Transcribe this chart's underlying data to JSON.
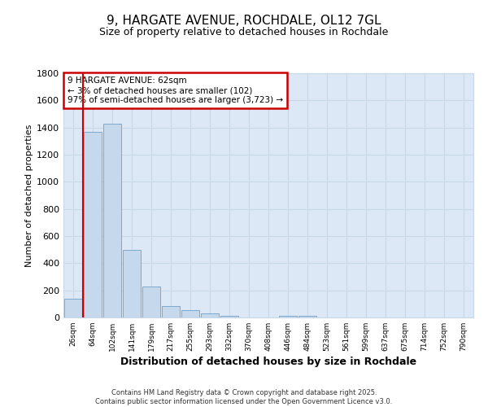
{
  "title1": "9, HARGATE AVENUE, ROCHDALE, OL12 7GL",
  "title2": "Size of property relative to detached houses in Rochdale",
  "xlabel": "Distribution of detached houses by size in Rochdale",
  "ylabel": "Number of detached properties",
  "categories": [
    "26sqm",
    "64sqm",
    "102sqm",
    "141sqm",
    "179sqm",
    "217sqm",
    "255sqm",
    "293sqm",
    "332sqm",
    "370sqm",
    "408sqm",
    "446sqm",
    "484sqm",
    "523sqm",
    "561sqm",
    "599sqm",
    "637sqm",
    "675sqm",
    "714sqm",
    "752sqm",
    "790sqm"
  ],
  "values": [
    140,
    1370,
    1430,
    500,
    230,
    85,
    55,
    30,
    10,
    0,
    0,
    15,
    15,
    0,
    0,
    0,
    0,
    0,
    0,
    0,
    0
  ],
  "bar_color": "#c5d8ec",
  "bar_edge_color": "#7aaace",
  "grid_color": "#c8d8e8",
  "background_color": "#ffffff",
  "plot_bg_color": "#dce8f5",
  "vline_color": "#cc0000",
  "vline_x_pos": 0.5,
  "annotation_text": "9 HARGATE AVENUE: 62sqm\n← 3% of detached houses are smaller (102)\n97% of semi-detached houses are larger (3,723) →",
  "annotation_box_color": "#ffffff",
  "annotation_box_edge": "#cc0000",
  "ylim": [
    0,
    1800
  ],
  "yticks": [
    0,
    200,
    400,
    600,
    800,
    1000,
    1200,
    1400,
    1600,
    1800
  ],
  "footnote": "Contains HM Land Registry data © Crown copyright and database right 2025.\nContains public sector information licensed under the Open Government Licence v3.0."
}
